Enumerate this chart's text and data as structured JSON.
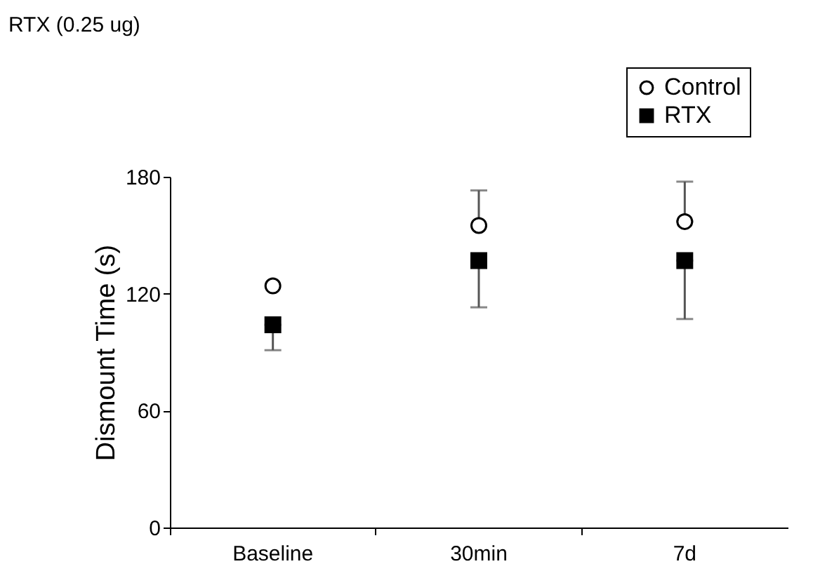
{
  "chart_data": {
    "type": "scatter",
    "title": "RTX (0.25 ug)",
    "ylabel": "Dismount Time (s)",
    "categories": [
      "Baseline",
      "30min",
      "7d"
    ],
    "series": [
      {
        "name": "Control",
        "color": "#000000",
        "marker": "circle",
        "values": [
          124,
          155,
          157
        ],
        "errors": [
          null,
          [
            155,
            173
          ],
          [
            157,
            177.5
          ]
        ]
      },
      {
        "name": "RTX",
        "color": "#000000",
        "marker": "square",
        "values": [
          104,
          137,
          137
        ],
        "errors": [
          [
            91,
            104
          ],
          [
            113,
            137
          ],
          [
            107,
            137
          ]
        ]
      }
    ],
    "ylim": [
      0,
      180
    ],
    "yticks": [
      0,
      60,
      120,
      180
    ],
    "grid": false,
    "legend": "top right"
  }
}
